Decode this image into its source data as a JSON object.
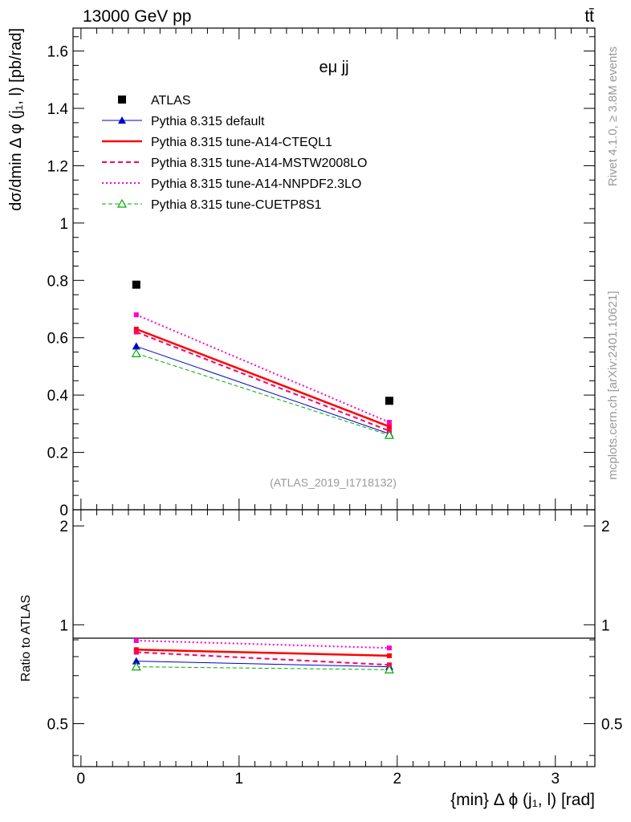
{
  "header": {
    "energy_label": "13000 GeV pp",
    "process_label": "tt̄",
    "side_label_rivet": "Rivet 4.1.0, ≥ 3.8M events",
    "side_label_site": "mcplots.cern.ch [arXiv:2401.10621]"
  },
  "chart_data": [
    {
      "type": "line",
      "panel": "main",
      "title": "eμ jj",
      "analysis_label": "(ATLAS_2019_I1718132)",
      "ylabel": "dσ/dmin Δ φ (j₁, l) [pb/rad]",
      "xlim": [
        -0.05,
        3.25
      ],
      "ylim": [
        0,
        1.68
      ],
      "yticks": [
        0,
        0.2,
        0.4,
        0.6,
        0.8,
        1,
        1.2,
        1.4,
        1.6
      ],
      "ytick_labels": [
        "0",
        "0.2",
        "0.4",
        "0.6",
        "0.8",
        "1",
        "1.2",
        "1.4",
        "1.6"
      ],
      "x": [
        0.35,
        1.95
      ],
      "series": [
        {
          "name": "ATLAS",
          "values": [
            0.785,
            0.38
          ],
          "color": "#000000",
          "style": "marker-square"
        },
        {
          "name": "Pythia 8.315 default",
          "values": [
            0.57,
            0.265
          ],
          "color": "#0000cc",
          "style": "solid-thin-triangle"
        },
        {
          "name": "Pythia 8.315 tune-A14-CTEQL1",
          "values": [
            0.63,
            0.29
          ],
          "color": "#ff0000",
          "style": "solid-thick"
        },
        {
          "name": "Pythia 8.315 tune-A14-MSTW2008LO",
          "values": [
            0.62,
            0.275
          ],
          "color": "#ff0066",
          "style": "dashed"
        },
        {
          "name": "Pythia 8.315 tune-A14-NNPDF2.3LO",
          "values": [
            0.68,
            0.305
          ],
          "color": "#ff00cc",
          "style": "dotted"
        },
        {
          "name": "Pythia 8.315 tune-CUETP8S1",
          "values": [
            0.545,
            0.26
          ],
          "color": "#00aa00",
          "style": "dashed-open-triangle"
        }
      ]
    },
    {
      "type": "line",
      "panel": "ratio",
      "ylabel": "Ratio to ATLAS",
      "xlabel": "{min} Δ ϕ (j₁, l) [rad]",
      "ylim": [
        0.37,
        2.24
      ],
      "yscale": "log",
      "yticks": [
        0.5,
        1,
        2
      ],
      "ytick_labels": [
        "0.5",
        "1",
        "2"
      ],
      "xticks": [
        0,
        1,
        2,
        3
      ],
      "xtick_labels": [
        "0",
        "1",
        "2",
        "3"
      ],
      "x": [
        0.35,
        1.95
      ],
      "series": [
        {
          "name": "Pythia 8.315 default",
          "values": [
            0.775,
            0.745
          ],
          "color": "#0000cc",
          "style": "solid-thin-triangle"
        },
        {
          "name": "Pythia 8.315 tune-A14-CTEQL1",
          "values": [
            0.84,
            0.805
          ],
          "color": "#ff0000",
          "style": "solid-thick"
        },
        {
          "name": "Pythia 8.315 tune-A14-MSTW2008LO",
          "values": [
            0.825,
            0.755
          ],
          "color": "#ff0066",
          "style": "dashed"
        },
        {
          "name": "Pythia 8.315 tune-A14-NNPDF2.3LO",
          "values": [
            0.895,
            0.85
          ],
          "color": "#ff00cc",
          "style": "dotted"
        },
        {
          "name": "Pythia 8.315 tune-CUETP8S1",
          "values": [
            0.745,
            0.73
          ],
          "color": "#00aa00",
          "style": "dashed-open-triangle"
        }
      ]
    }
  ]
}
